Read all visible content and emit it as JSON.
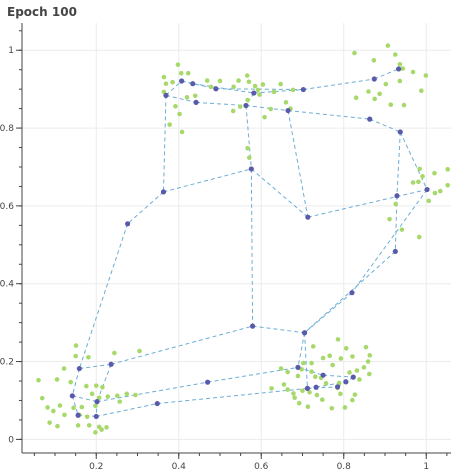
{
  "chart_data": {
    "type": "scatter",
    "title": "Epoch 100",
    "xlim": [
      0.02,
      1.06
    ],
    "ylim": [
      -0.035,
      1.07
    ],
    "x_ticks": [
      0.2,
      0.4,
      0.6,
      0.8,
      1
    ],
    "x_tick_labels": [
      "0.2",
      "0.4",
      "0.6",
      "0.8",
      "1"
    ],
    "y_ticks": [
      0,
      0.2,
      0.4,
      0.6,
      0.8,
      1
    ],
    "y_tick_labels": [
      "0",
      "0.2",
      "0.4",
      "0.6",
      "0.8",
      "1"
    ],
    "x_minor_step": 0.05,
    "y_minor_step": 0.05,
    "grid": true,
    "colors": {
      "data_points": "#a6d96a",
      "nodes": "#5a5aaa",
      "edges": "#6baed6",
      "grid": "#ececec",
      "axis": "#444444"
    },
    "series": [
      {
        "type": "scatter",
        "points": [
          [
            0.398,
            0.963
          ],
          [
            0.406,
            0.941
          ],
          [
            0.423,
            0.941
          ],
          [
            0.385,
            0.918
          ],
          [
            0.364,
            0.931
          ],
          [
            0.369,
            0.914
          ],
          [
            0.364,
            0.893
          ],
          [
            0.469,
            0.922
          ],
          [
            0.478,
            0.906
          ],
          [
            0.5,
            0.921
          ],
          [
            0.533,
            0.906
          ],
          [
            0.545,
            0.922
          ],
          [
            0.566,
            0.935
          ],
          [
            0.57,
            0.919
          ],
          [
            0.585,
            0.908
          ],
          [
            0.592,
            0.898
          ],
          [
            0.604,
            0.912
          ],
          [
            0.596,
            0.886
          ],
          [
            0.631,
            0.893
          ],
          [
            0.647,
            0.913
          ],
          [
            0.567,
            0.872
          ],
          [
            0.549,
            0.855
          ],
          [
            0.532,
            0.844
          ],
          [
            0.623,
            0.849
          ],
          [
            0.608,
            0.828
          ],
          [
            0.44,
            0.883
          ],
          [
            0.42,
            0.879
          ],
          [
            0.392,
            0.856
          ],
          [
            0.402,
            0.836
          ],
          [
            0.408,
            0.79
          ],
          [
            0.378,
            0.809
          ],
          [
            0.567,
            0.748
          ],
          [
            0.571,
            0.724
          ],
          [
            0.66,
            0.866
          ],
          [
            0.677,
            0.898
          ],
          [
            0.671,
            0.85
          ],
          [
            0.826,
            0.993
          ],
          [
            0.873,
            0.974
          ],
          [
            0.907,
            1.012
          ],
          [
            0.925,
            0.989
          ],
          [
            0.936,
            0.964
          ],
          [
            0.943,
            0.953
          ],
          [
            0.968,
            0.944
          ],
          [
            0.936,
            0.921
          ],
          [
            0.902,
            0.913
          ],
          [
            0.887,
            0.888
          ],
          [
            0.86,
            0.894
          ],
          [
            0.875,
            0.875
          ],
          [
            0.914,
            0.86
          ],
          [
            0.946,
            0.859
          ],
          [
            0.988,
            0.896
          ],
          [
            0.999,
            0.935
          ],
          [
            0.83,
            0.878
          ],
          [
            0.984,
            0.695
          ],
          [
            0.991,
            0.676
          ],
          [
            1.02,
            0.684
          ],
          [
            1.052,
            0.653
          ],
          [
            1.052,
            0.694
          ],
          [
            1.034,
            0.638
          ],
          [
            1.021,
            0.633
          ],
          [
            1.006,
            0.613
          ],
          [
            0.981,
            0.662
          ],
          [
            0.968,
            0.66
          ],
          [
            0.926,
            0.605
          ],
          [
            0.911,
            0.566
          ],
          [
            0.941,
            0.539
          ],
          [
            0.983,
            0.52
          ],
          [
            0.15,
            0.214
          ],
          [
            0.151,
            0.241
          ],
          [
            0.181,
            0.211
          ],
          [
            0.122,
            0.182
          ],
          [
            0.105,
            0.154
          ],
          [
            0.138,
            0.147
          ],
          [
            0.176,
            0.137
          ],
          [
            0.2,
            0.138
          ],
          [
            0.215,
            0.134
          ],
          [
            0.19,
            0.117
          ],
          [
            0.207,
            0.107
          ],
          [
            0.228,
            0.11
          ],
          [
            0.251,
            0.112
          ],
          [
            0.274,
            0.117
          ],
          [
            0.295,
            0.114
          ],
          [
            0.257,
            0.097
          ],
          [
            0.198,
            0.086
          ],
          [
            0.165,
            0.083
          ],
          [
            0.145,
            0.081
          ],
          [
            0.112,
            0.087
          ],
          [
            0.069,
            0.106
          ],
          [
            0.06,
            0.152
          ],
          [
            0.082,
            0.082
          ],
          [
            0.096,
            0.073
          ],
          [
            0.123,
            0.063
          ],
          [
            0.159,
            0.063
          ],
          [
            0.178,
            0.058
          ],
          [
            0.087,
            0.043
          ],
          [
            0.106,
            0.034
          ],
          [
            0.156,
            0.036
          ],
          [
            0.183,
            0.036
          ],
          [
            0.207,
            0.032
          ],
          [
            0.225,
            0.031
          ],
          [
            0.213,
            0.025
          ],
          [
            0.198,
            0.018
          ],
          [
            0.305,
            0.227
          ],
          [
            0.244,
            0.222
          ],
          [
            0.726,
            0.239
          ],
          [
            0.722,
            0.196
          ],
          [
            0.773,
            0.191
          ],
          [
            0.75,
            0.209
          ],
          [
            0.766,
            0.215
          ],
          [
            0.793,
            0.208
          ],
          [
            0.806,
            0.234
          ],
          [
            0.821,
            0.213
          ],
          [
            0.854,
            0.237
          ],
          [
            0.863,
            0.216
          ],
          [
            0.859,
            0.2
          ],
          [
            0.849,
            0.185
          ],
          [
            0.832,
            0.177
          ],
          [
            0.814,
            0.172
          ],
          [
            0.862,
            0.168
          ],
          [
            0.838,
            0.154
          ],
          [
            0.806,
            0.147
          ],
          [
            0.789,
            0.145
          ],
          [
            0.786,
            0.257
          ],
          [
            0.702,
            0.196
          ],
          [
            0.648,
            0.182
          ],
          [
            0.664,
            0.173
          ],
          [
            0.689,
            0.163
          ],
          [
            0.698,
            0.18
          ],
          [
            0.722,
            0.174
          ],
          [
            0.731,
            0.161
          ],
          [
            0.745,
            0.158
          ],
          [
            0.757,
            0.144
          ],
          [
            0.785,
            0.132
          ],
          [
            0.792,
            0.117
          ],
          [
            0.827,
            0.115
          ],
          [
            0.821,
            0.101
          ],
          [
            0.803,
            0.082
          ],
          [
            0.771,
            0.08
          ],
          [
            0.748,
            0.102
          ],
          [
            0.735,
            0.114
          ],
          [
            0.717,
            0.121
          ],
          [
            0.7,
            0.125
          ],
          [
            0.678,
            0.118
          ],
          [
            0.664,
            0.128
          ],
          [
            0.655,
            0.141
          ],
          [
            0.713,
            0.084
          ],
          [
            0.692,
            0.093
          ],
          [
            0.681,
            0.107
          ],
          [
            0.625,
            0.131
          ]
        ]
      },
      {
        "type": "network",
        "nodes": [
          [
            0.369,
            0.884
          ],
          [
            0.407,
            0.921
          ],
          [
            0.434,
            0.914
          ],
          [
            0.49,
            0.901
          ],
          [
            0.582,
            0.89
          ],
          [
            0.702,
            0.899
          ],
          [
            0.874,
            0.926
          ],
          [
            0.933,
            0.952
          ],
          [
            0.442,
            0.866
          ],
          [
            0.563,
            0.858
          ],
          [
            0.665,
            0.845
          ],
          [
            0.863,
            0.823
          ],
          [
            0.937,
            0.79
          ],
          [
            0.363,
            0.636
          ],
          [
            0.576,
            0.695
          ],
          [
            0.713,
            0.571
          ],
          [
            0.929,
            0.626
          ],
          [
            1.002,
            0.642
          ],
          [
            0.276,
            0.554
          ],
          [
            0.925,
            0.483
          ],
          [
            0.82,
            0.377
          ],
          [
            0.579,
            0.291
          ],
          [
            0.705,
            0.274
          ],
          [
            0.236,
            0.193
          ],
          [
            0.159,
            0.182
          ],
          [
            0.689,
            0.185
          ],
          [
            0.75,
            0.165
          ],
          [
            0.823,
            0.16
          ],
          [
            0.805,
            0.148
          ],
          [
            0.785,
            0.135
          ],
          [
            0.142,
            0.112
          ],
          [
            0.47,
            0.147
          ],
          [
            0.733,
            0.134
          ],
          [
            0.712,
            0.131
          ],
          [
            0.202,
            0.097
          ],
          [
            0.348,
            0.092
          ],
          [
            0.156,
            0.062
          ],
          [
            0.2,
            0.059
          ]
        ],
        "edges": [
          [
            0,
            1
          ],
          [
            1,
            3
          ],
          [
            3,
            5
          ],
          [
            5,
            6
          ],
          [
            6,
            7
          ],
          [
            0,
            8
          ],
          [
            8,
            9
          ],
          [
            9,
            10
          ],
          [
            10,
            11
          ],
          [
            11,
            12
          ],
          [
            1,
            2
          ],
          [
            2,
            4
          ],
          [
            4,
            5
          ],
          [
            4,
            9
          ],
          [
            9,
            14
          ],
          [
            10,
            15
          ],
          [
            12,
            16
          ],
          [
            12,
            17
          ],
          [
            0,
            13
          ],
          [
            13,
            14
          ],
          [
            14,
            15
          ],
          [
            15,
            17
          ],
          [
            13,
            18
          ],
          [
            18,
            24
          ],
          [
            14,
            21
          ],
          [
            16,
            19
          ],
          [
            17,
            20
          ],
          [
            20,
            22
          ],
          [
            19,
            22
          ],
          [
            21,
            22
          ],
          [
            22,
            33
          ],
          [
            24,
            23
          ],
          [
            23,
            21
          ],
          [
            23,
            34
          ],
          [
            24,
            30
          ],
          [
            30,
            34
          ],
          [
            30,
            36
          ],
          [
            36,
            37
          ],
          [
            37,
            35
          ],
          [
            34,
            31
          ],
          [
            31,
            25
          ],
          [
            35,
            33
          ],
          [
            25,
            26
          ],
          [
            26,
            27
          ],
          [
            27,
            28
          ],
          [
            33,
            29
          ],
          [
            29,
            28
          ],
          [
            22,
            25
          ],
          [
            33,
            32
          ],
          [
            32,
            28
          ],
          [
            34,
            37
          ]
        ]
      }
    ]
  }
}
